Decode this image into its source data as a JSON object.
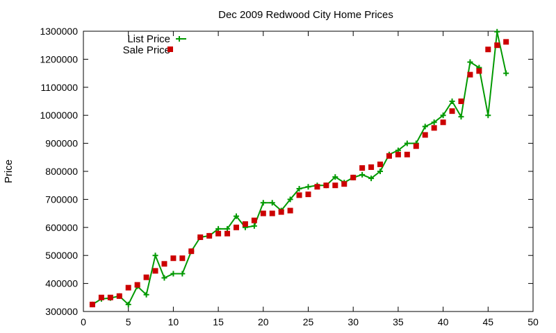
{
  "chart_data": {
    "type": "line",
    "title": "Dec 2009 Redwood City Home Prices",
    "xlabel": "",
    "ylabel": "Price",
    "xlim": [
      0,
      50
    ],
    "ylim": [
      300000,
      1300000
    ],
    "xticks": [
      0,
      5,
      10,
      15,
      20,
      25,
      30,
      35,
      40,
      45,
      50
    ],
    "yticks": [
      300000,
      400000,
      500000,
      600000,
      700000,
      800000,
      900000,
      1000000,
      1100000,
      1200000,
      1300000
    ],
    "grid": false,
    "legend_position": "top-left",
    "series": [
      {
        "name": "List Price",
        "style": "line-with-plus-markers",
        "color": "#009900",
        "x": [
          1,
          2,
          3,
          4,
          5,
          6,
          7,
          8,
          9,
          10,
          11,
          12,
          13,
          14,
          15,
          16,
          17,
          18,
          19,
          20,
          21,
          22,
          23,
          24,
          25,
          26,
          27,
          28,
          29,
          30,
          31,
          32,
          33,
          34,
          35,
          36,
          37,
          38,
          39,
          40,
          41,
          42,
          43,
          44,
          45,
          46,
          47
        ],
        "y": [
          325000,
          345000,
          348000,
          355000,
          325000,
          390000,
          360000,
          500000,
          420000,
          435000,
          435000,
          515000,
          565000,
          570000,
          595000,
          595000,
          640000,
          600000,
          605000,
          688000,
          688000,
          660000,
          700000,
          738000,
          745000,
          750000,
          750000,
          780000,
          760000,
          778000,
          788000,
          775000,
          800000,
          860000,
          875000,
          900000,
          900000,
          960000,
          975000,
          1000000,
          1050000,
          995000,
          1190000,
          1170000,
          1000000,
          1298000,
          1150000
        ]
      },
      {
        "name": "Sale Price",
        "style": "square-markers",
        "color": "#cc0000",
        "x": [
          1,
          2,
          3,
          4,
          5,
          6,
          7,
          8,
          9,
          10,
          11,
          12,
          13,
          14,
          15,
          16,
          17,
          18,
          19,
          20,
          21,
          22,
          23,
          24,
          25,
          26,
          27,
          28,
          29,
          30,
          31,
          32,
          33,
          34,
          35,
          36,
          37,
          38,
          39,
          40,
          41,
          42,
          43,
          44,
          45,
          46,
          47
        ],
        "y": [
          325000,
          350000,
          350000,
          355000,
          385000,
          395000,
          422000,
          445000,
          470000,
          490000,
          490000,
          515000,
          565000,
          570000,
          578000,
          578000,
          600000,
          612000,
          625000,
          650000,
          650000,
          655000,
          660000,
          715000,
          718000,
          745000,
          750000,
          750000,
          755000,
          778000,
          812000,
          815000,
          825000,
          855000,
          860000,
          860000,
          890000,
          930000,
          955000,
          975000,
          1015000,
          1050000,
          1145000,
          1158000,
          1235000,
          1250000,
          1262000
        ]
      }
    ]
  }
}
